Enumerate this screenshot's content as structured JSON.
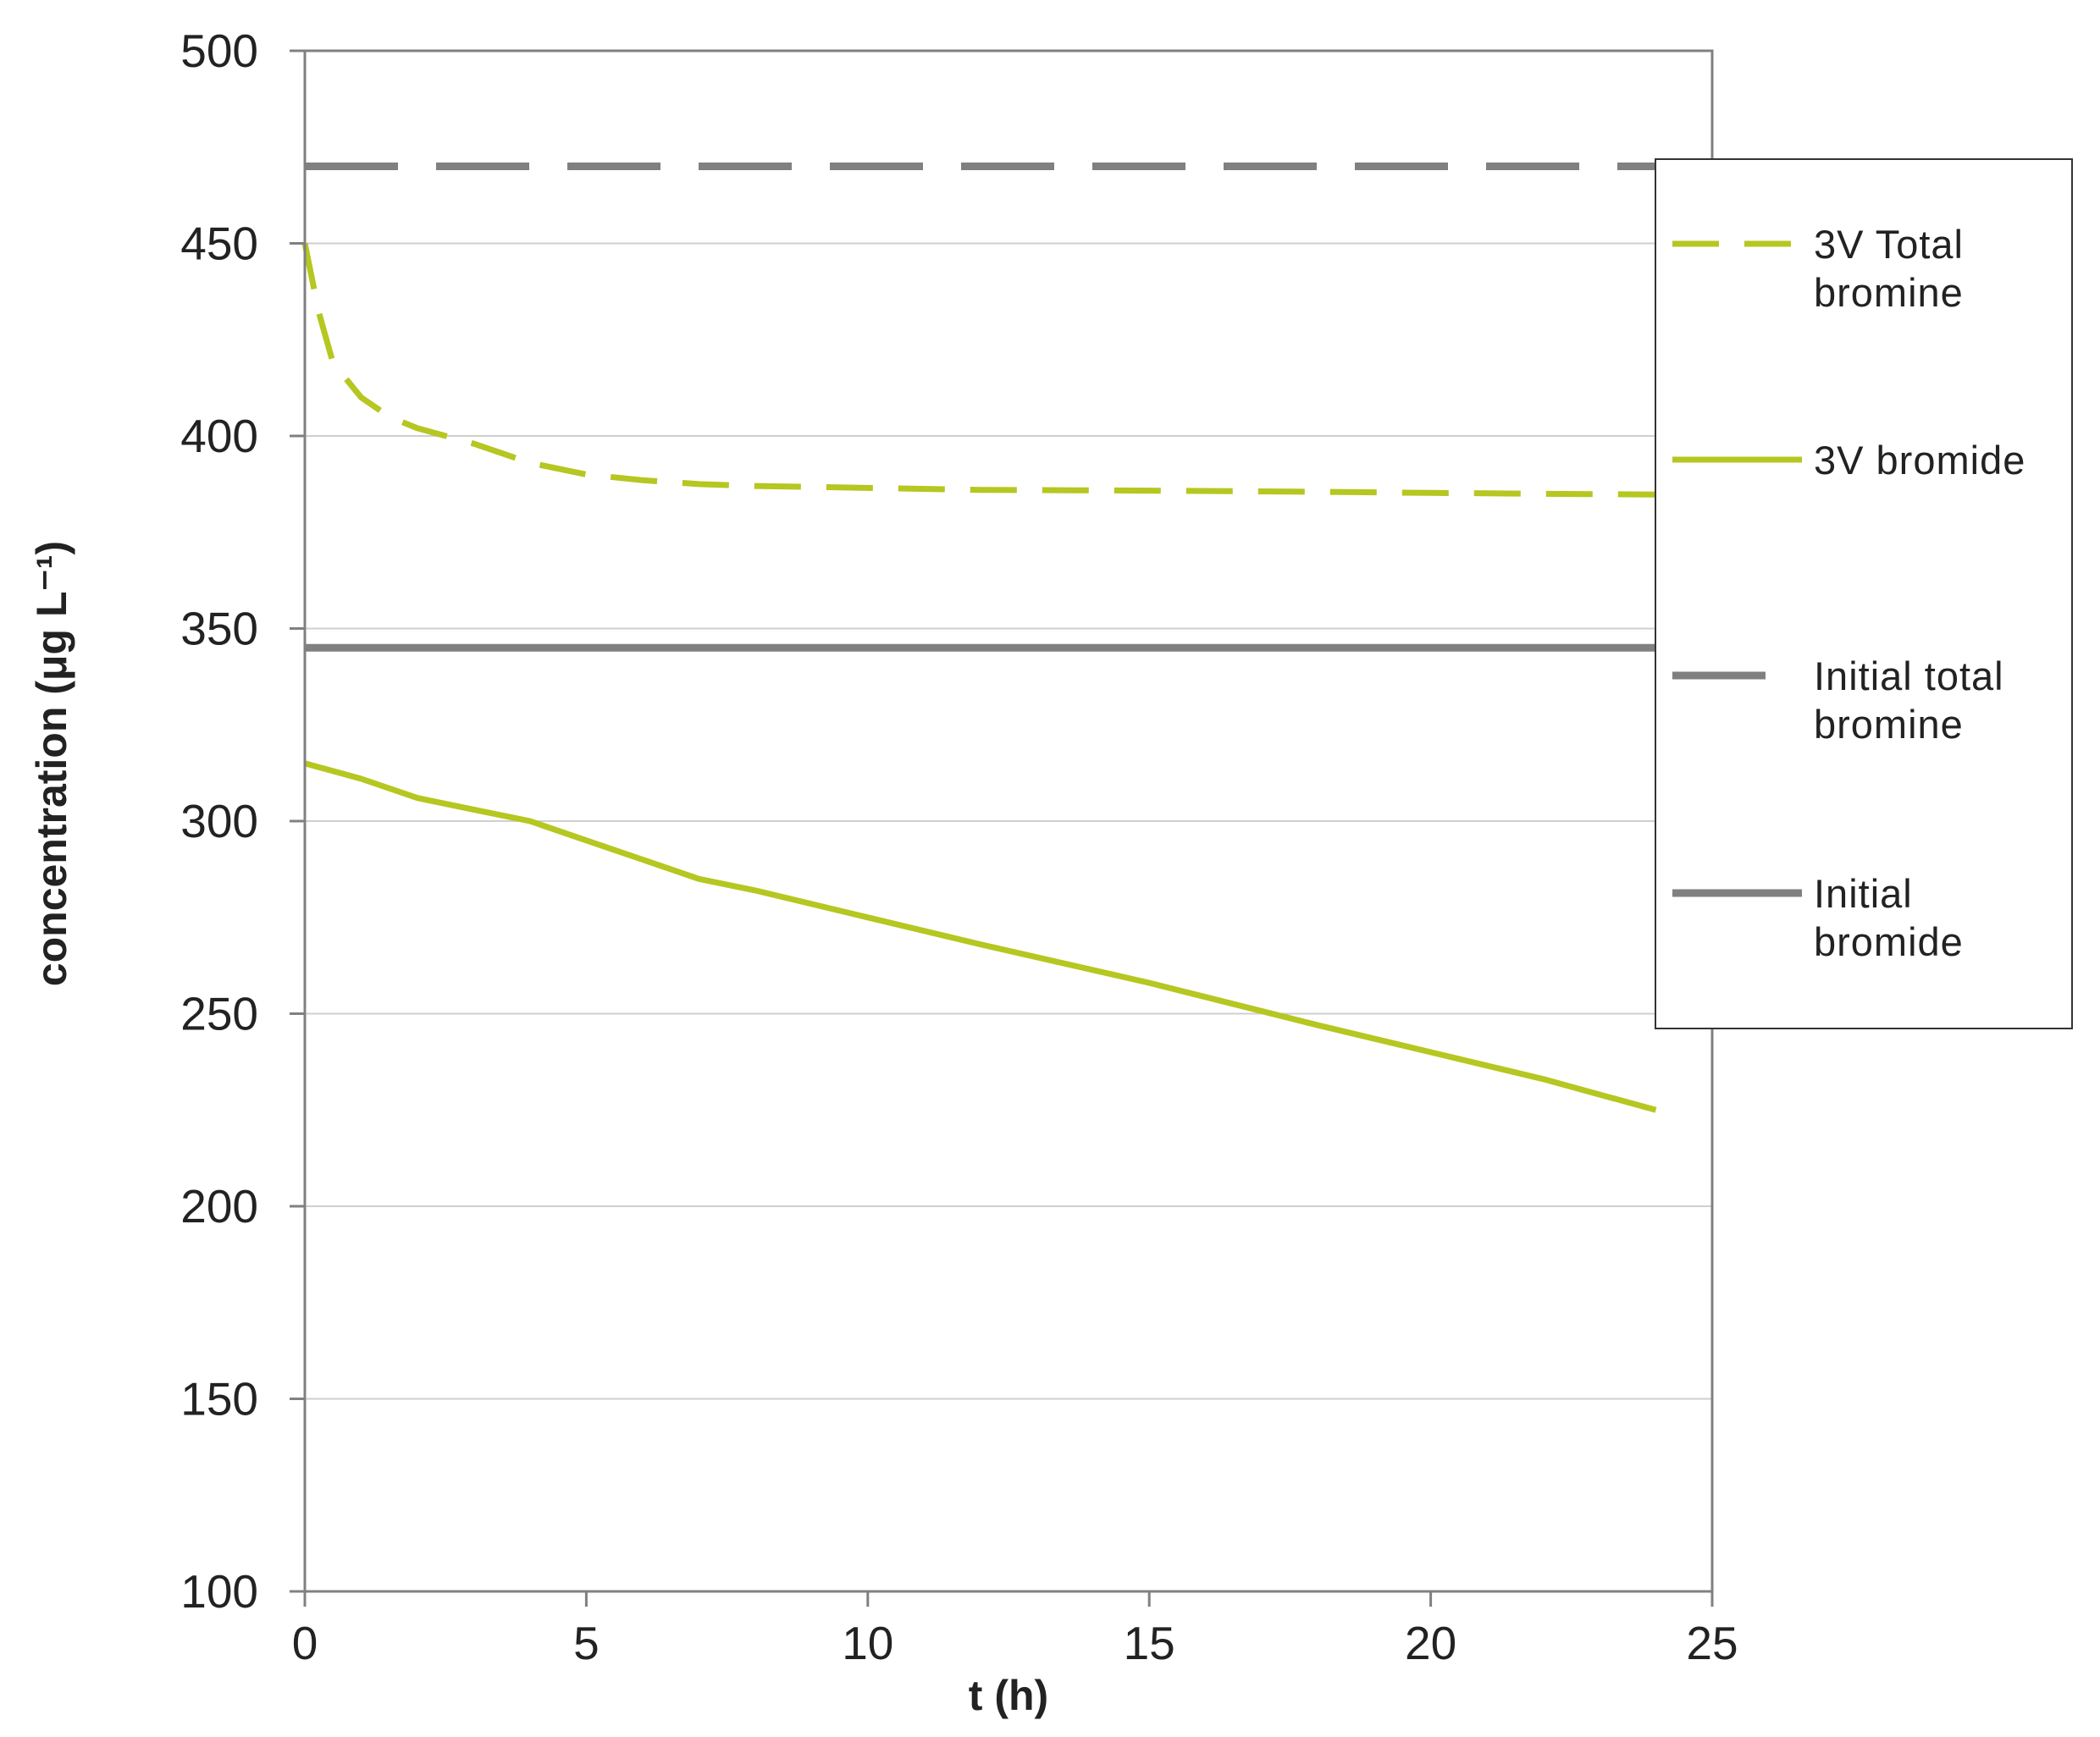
{
  "chart_data": {
    "type": "line",
    "xlabel": "t (h)",
    "ylabel": "concentration (μg L⁻¹)",
    "xlim": [
      0,
      25
    ],
    "ylim": [
      100,
      500
    ],
    "xticks": [
      "0",
      "5",
      "10",
      "15",
      "20",
      "25"
    ],
    "yticks": [
      "100",
      "150",
      "200",
      "250",
      "300",
      "350",
      "400",
      "450",
      "500"
    ],
    "grid": "horizontal",
    "legend_position": "right",
    "series": [
      {
        "name": "3V Total bromine",
        "color": "#b5c720",
        "style": "dashed",
        "x": [
          0,
          0.25,
          0.5,
          1,
          1.5,
          2,
          3,
          4,
          5,
          6,
          7,
          8,
          10,
          12,
          15,
          18,
          20,
          22,
          24
        ],
        "y": [
          450,
          432,
          419,
          410,
          405,
          402,
          398,
          393,
          390,
          388.5,
          387.5,
          387,
          386.5,
          386,
          385.8,
          385.5,
          385.2,
          385,
          384.8
        ]
      },
      {
        "name": "3V bromide",
        "color": "#b5c720",
        "style": "solid",
        "x": [
          0,
          1,
          2,
          3,
          4,
          5,
          6,
          7,
          8,
          10,
          12,
          15,
          18,
          20,
          22,
          24
        ],
        "y": [
          315,
          311,
          306,
          303,
          300,
          295,
          290,
          285,
          282,
          275,
          268,
          258,
          247,
          240,
          233,
          225
        ]
      },
      {
        "name": "Initial total bromine",
        "color": "#808080",
        "style": "dashed",
        "x": [
          0,
          25
        ],
        "y": [
          470,
          470
        ]
      },
      {
        "name": "Initial bromide",
        "color": "#808080",
        "style": "solid",
        "x": [
          0,
          25
        ],
        "y": [
          345,
          345
        ]
      }
    ],
    "legend": {
      "entries": [
        {
          "lines": [
            "3V Total",
            "bromine"
          ]
        },
        {
          "lines": [
            "3V bromide"
          ]
        },
        {
          "lines": [
            "Initial total",
            "bromine"
          ]
        },
        {
          "lines": [
            "Initial",
            "bromide"
          ]
        }
      ]
    }
  }
}
